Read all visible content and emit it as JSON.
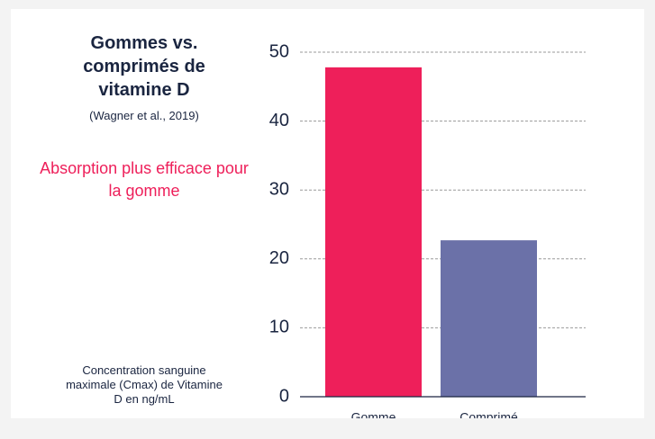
{
  "chart_data": {
    "type": "bar",
    "title": "Gommes vs. comprimés de vitamine D",
    "subtitle": "(Wagner et al., 2019)",
    "annotation": "Absorption plus efficace pour la gomme",
    "y_axis_label": "Concentration sanguine maximale (Cmax) de Vitamine D en ng/mL",
    "categories": [
      "Gomme",
      "Comprimé"
    ],
    "values": [
      47.8,
      22.7
    ],
    "colors": [
      "#ee1f5a",
      "#6b71a8"
    ],
    "ylim": [
      0,
      50
    ],
    "yticks": [
      0,
      10,
      20,
      30,
      40,
      50
    ],
    "grid": true
  }
}
